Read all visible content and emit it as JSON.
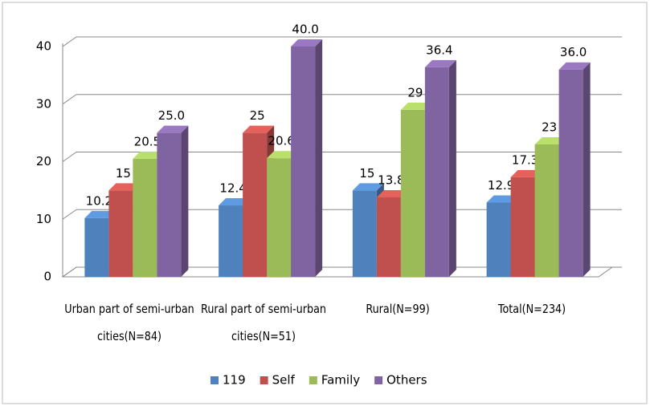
{
  "chart_data": {
    "type": "bar3d",
    "categories": [
      "Urban part of semi-urban cities(N=84)",
      "Rural part of semi-urban cities(N=51)",
      "Rural(N=99)",
      "Total(N=234)"
    ],
    "series": [
      {
        "name": "119",
        "color": "#4f81bd",
        "values": [
          10.2,
          12.4,
          15,
          12.9
        ]
      },
      {
        "name": "Self",
        "color": "#c0504d",
        "values": [
          15,
          25,
          13.8,
          17.3
        ]
      },
      {
        "name": "Family",
        "color": "#9bbb59",
        "values": [
          20.5,
          20.6,
          29,
          23
        ]
      },
      {
        "name": "Others",
        "color": "#8064a2",
        "values": [
          25,
          40,
          36.4,
          36
        ],
        "value_labels": [
          "25.0",
          "40.0",
          "36.4",
          "36.0"
        ]
      }
    ],
    "ylim": [
      0,
      40
    ],
    "yticks": [
      0,
      10,
      20,
      30,
      40
    ],
    "grid": true,
    "legend": "bottom"
  }
}
